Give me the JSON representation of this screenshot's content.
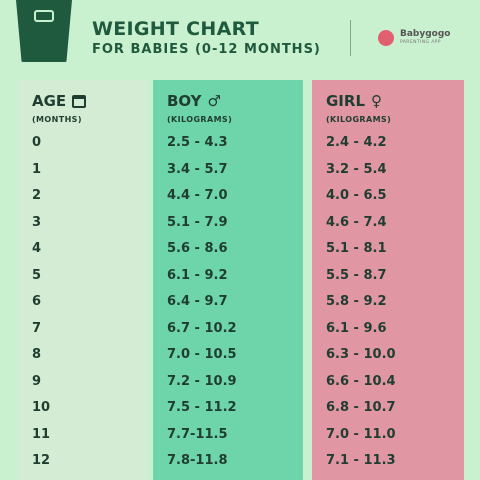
{
  "header": {
    "title": "WEIGHT CHART",
    "subtitle": "FOR BABIES (0-12 MONTHS)",
    "brand_name": "Babygogo",
    "brand_tagline": "PARENTING APP"
  },
  "columns": {
    "age": {
      "label": "AGE",
      "unit": "(MONTHS)",
      "icon": "calendar-icon"
    },
    "boy": {
      "label": "BOY",
      "symbol": "♂",
      "unit": "(KILOGRAMS)"
    },
    "girl": {
      "label": "GIRL",
      "symbol": "♀",
      "unit": "(KILOGRAMS)"
    }
  },
  "rows": [
    {
      "age": "0",
      "boy": "2.5 - 4.3",
      "girl": "2.4 - 4.2"
    },
    {
      "age": "1",
      "boy": "3.4 - 5.7",
      "girl": "3.2 - 5.4"
    },
    {
      "age": "2",
      "boy": "4.4 - 7.0",
      "girl": "4.0 - 6.5"
    },
    {
      "age": "3",
      "boy": "5.1 - 7.9",
      "girl": "4.6 - 7.4"
    },
    {
      "age": "4",
      "boy": "5.6 - 8.6",
      "girl": "5.1 - 8.1"
    },
    {
      "age": "5",
      "boy": "6.1 - 9.2",
      "girl": "5.5 - 8.7"
    },
    {
      "age": "6",
      "boy": "6.4 - 9.7",
      "girl": "5.8 - 9.2"
    },
    {
      "age": "7",
      "boy": "6.7 - 10.2",
      "girl": "6.1 - 9.6"
    },
    {
      "age": "8",
      "boy": "7.0 - 10.5",
      "girl": "6.3 - 10.0"
    },
    {
      "age": "9",
      "boy": "7.2 - 10.9",
      "girl": "6.6 - 10.4"
    },
    {
      "age": "10",
      "boy": "7.5 - 11.2",
      "girl": "6.8 - 10.7"
    },
    {
      "age": "11",
      "boy": "7.7-11.5",
      "girl": "7.0 - 11.0"
    },
    {
      "age": "12",
      "boy": "7.8-11.8",
      "girl": "7.1 - 11.3"
    }
  ],
  "colors": {
    "background": "#c9f0cf",
    "age_column": "#d4ecd3",
    "boy_column": "#6ed4aa",
    "girl_column": "#e096a3",
    "title_text": "#1f5a3e"
  }
}
